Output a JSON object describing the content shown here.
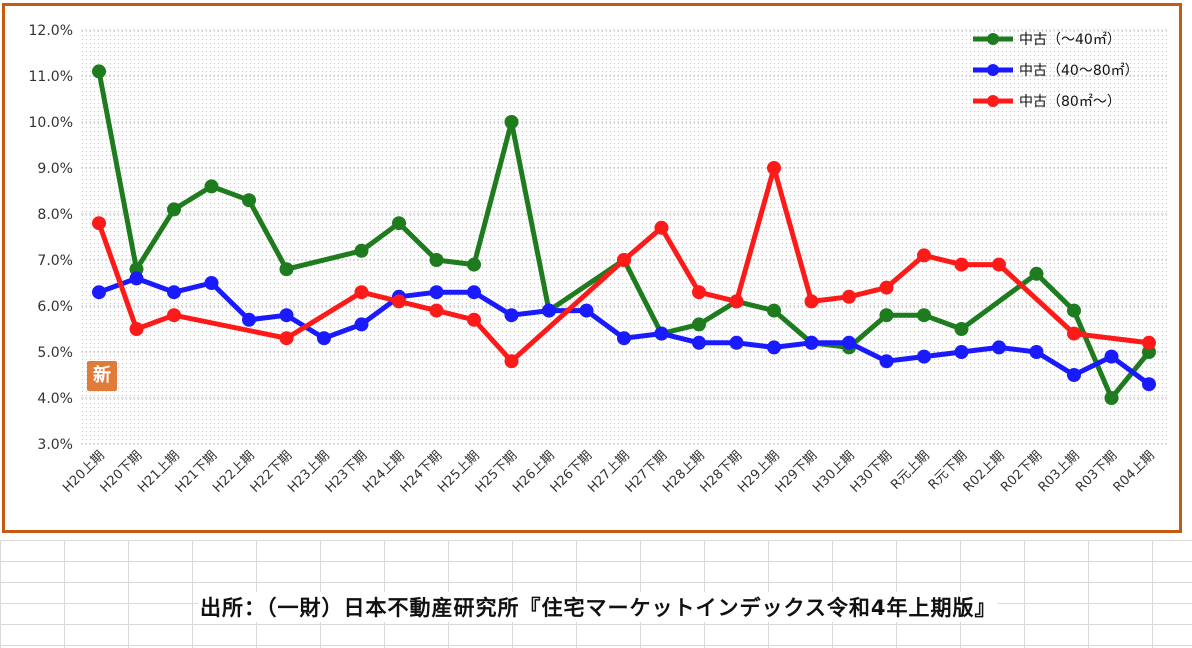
{
  "badge": "新",
  "source_note": "出所：（一財）日本不動産研究所『住宅マーケットインデックス令和4年上期版』",
  "chart_data": {
    "type": "line",
    "title": "",
    "xlabel": "",
    "ylabel": "",
    "ylim": [
      3.0,
      12.0
    ],
    "y_ticks": [
      "3.0%",
      "4.0%",
      "5.0%",
      "6.0%",
      "7.0%",
      "8.0%",
      "9.0%",
      "10.0%",
      "11.0%",
      "12.0%"
    ],
    "grid": true,
    "legend_position": "top-right",
    "categories": [
      "H20上期",
      "H20下期",
      "H21上期",
      "H21下期",
      "H22上期",
      "H22下期",
      "H23上期",
      "H23下期",
      "H24上期",
      "H24下期",
      "H25上期",
      "H25下期",
      "H26上期",
      "H26下期",
      "H27上期",
      "H27下期",
      "H28上期",
      "H28下期",
      "H29上期",
      "H29下期",
      "H30上期",
      "H30下期",
      "R元上期",
      "R元下期",
      "R02上期",
      "R02下期",
      "R03上期",
      "R03下期",
      "R04上期"
    ],
    "series": [
      {
        "name": "中古（～40㎡）",
        "color": "#1e7b1e",
        "values": [
          11.1,
          6.8,
          8.1,
          8.6,
          8.3,
          6.8,
          null,
          7.2,
          7.8,
          7.0,
          6.9,
          10.0,
          5.9,
          null,
          7.0,
          5.4,
          5.6,
          6.1,
          5.9,
          5.2,
          5.1,
          5.8,
          5.8,
          5.5,
          null,
          6.7,
          5.9,
          4.0,
          5.0
        ]
      },
      {
        "name": "中古（40～80㎡）",
        "color": "#1a1aff",
        "values": [
          6.3,
          6.6,
          6.3,
          6.5,
          5.7,
          5.8,
          5.3,
          5.6,
          6.2,
          6.3,
          6.3,
          5.8,
          5.9,
          5.9,
          5.3,
          5.4,
          5.2,
          5.2,
          5.1,
          5.2,
          5.2,
          4.8,
          4.9,
          5.0,
          5.1,
          5.0,
          4.5,
          4.9,
          4.3
        ]
      },
      {
        "name": "中古（80㎡～）",
        "color": "#ff1a1a",
        "values": [
          7.8,
          5.5,
          5.8,
          null,
          null,
          5.3,
          null,
          6.3,
          6.1,
          5.9,
          5.7,
          4.8,
          null,
          null,
          7.0,
          7.7,
          6.3,
          6.1,
          9.0,
          6.1,
          6.2,
          6.4,
          7.1,
          6.9,
          6.9,
          null,
          5.4,
          null,
          5.2
        ]
      }
    ]
  }
}
